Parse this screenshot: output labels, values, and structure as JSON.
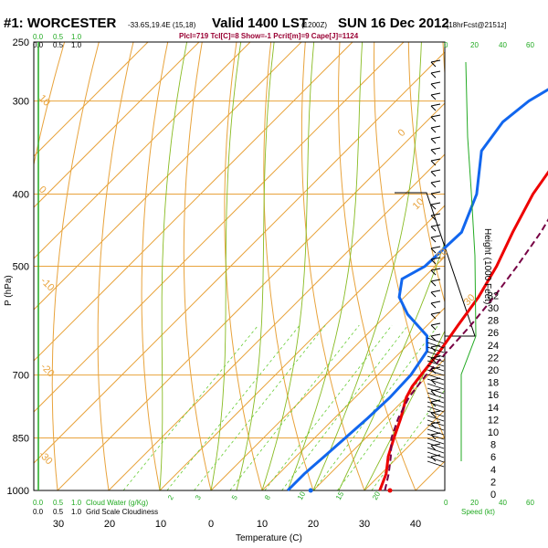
{
  "header": {
    "station": "#1: WORCESTER",
    "coords": "-33.6S,19.4E (15,18)",
    "valid": "Valid 1400 LST",
    "utc": "(1200Z)",
    "date": "SUN 16 Dec 2012",
    "forecast": "[18hrFcst@2151z]",
    "indices": "Plcl=719 TcI[C]=8 Show=-1 Pcrit[m]=9 Cape[J]=1124"
  },
  "labels": {
    "pressure_axis": "P (hPa)",
    "temperature_axis": "Temperature (C)",
    "height_axis": "Height (1000 Feet)",
    "speed_axis": "Speed (kt)",
    "cloud_water": "Cloud Water (g/Kg)",
    "cloudiness": "Grid Scale Cloudiness",
    "top_scale": [
      "0.0",
      "0.5",
      "1.0"
    ],
    "top_scale_green": [
      "0.0",
      "0.5",
      "1.0"
    ],
    "bottom_scale": [
      "0.0",
      "0.5",
      "1.0"
    ],
    "bottom_scale_green": [
      "0.0",
      "0.5",
      "1.0"
    ],
    "speed_ticks_black": [
      "0",
      "20"
    ],
    "speed_ticks_green": [
      "40",
      "60"
    ]
  },
  "chart_data": {
    "type": "line",
    "title": "#1: WORCESTER Valid 1400 LST (1200Z) SUN 16 Dec 2012",
    "xlabel": "Temperature (C)",
    "ylabel": "P (hPa)",
    "pressure_ticks": [
      250,
      300,
      400,
      500,
      700,
      850,
      1000
    ],
    "temperature_ticks": [
      30,
      20,
      10,
      0,
      10,
      20,
      30,
      40
    ],
    "height_ticks": [
      0,
      2,
      4,
      6,
      8,
      10,
      12,
      14,
      16,
      18,
      20,
      22,
      24,
      26,
      28,
      30,
      32
    ],
    "isotherm_labels": [
      "0",
      "10",
      "20",
      "30",
      "40"
    ],
    "mixing_ratio_labels": [
      "2",
      "3",
      "5",
      "8",
      "10",
      "15",
      "20"
    ],
    "adiabat_labels": [
      "10",
      "0",
      "-10",
      "-20",
      "-30"
    ],
    "colors": {
      "temperature": "#ee0000",
      "dewpoint": "#1166ee",
      "parcel": "#770044",
      "isotherm": "#e8a33c",
      "adiabat": "#88bb22",
      "mixing_ratio": "#66cc33",
      "cloud": "#22aa22"
    },
    "series": [
      {
        "name": "temperature",
        "points": [
          [
            1000,
            33.0
          ],
          [
            950,
            31.0
          ],
          [
            900,
            28.0
          ],
          [
            850,
            25.5
          ],
          [
            800,
            23.0
          ],
          [
            750,
            20.0
          ],
          [
            725,
            19.0
          ],
          [
            700,
            18.5
          ],
          [
            650,
            17.5
          ],
          [
            600,
            16.0
          ],
          [
            550,
            14.5
          ],
          [
            500,
            12.0
          ],
          [
            450,
            8.5
          ],
          [
            400,
            5.0
          ],
          [
            350,
            2.5
          ],
          [
            300,
            0.0
          ],
          [
            260,
            -1.5
          ]
        ]
      },
      {
        "name": "dewpoint",
        "points": [
          [
            1000,
            15.0
          ],
          [
            950,
            15.0
          ],
          [
            900,
            15.5
          ],
          [
            850,
            16.0
          ],
          [
            800,
            16.5
          ],
          [
            750,
            16.8
          ],
          [
            700,
            16.5
          ],
          [
            650,
            15.0
          ],
          [
            620,
            12.0
          ],
          [
            580,
            4.0
          ],
          [
            550,
            -1.0
          ],
          [
            520,
            -4.0
          ],
          [
            500,
            -2.0
          ],
          [
            450,
            -1.5
          ],
          [
            400,
            -6.0
          ],
          [
            350,
            -13.5
          ],
          [
            320,
            -15.0
          ],
          [
            300,
            -14.0
          ],
          [
            280,
            -11.0
          ],
          [
            260,
            -10.5
          ]
        ]
      },
      {
        "name": "parcel",
        "points": [
          [
            1000,
            34.0
          ],
          [
            950,
            31.5
          ],
          [
            900,
            28.5
          ],
          [
            850,
            25.0
          ],
          [
            800,
            22.5
          ],
          [
            750,
            20.5
          ],
          [
            700,
            19.5
          ],
          [
            650,
            19.0
          ],
          [
            600,
            18.5
          ],
          [
            550,
            17.5
          ],
          [
            500,
            16.0
          ],
          [
            450,
            14.0
          ],
          [
            400,
            11.0
          ],
          [
            350,
            8.0
          ],
          [
            300,
            4.5
          ],
          [
            260,
            1.5
          ]
        ]
      }
    ],
    "surface_points": [
      {
        "name": "surface-temperature",
        "pressure": 1000,
        "temperature": 35.0
      },
      {
        "name": "surface-dewpoint",
        "pressure": 1000,
        "temperature": 19.5
      }
    ]
  }
}
